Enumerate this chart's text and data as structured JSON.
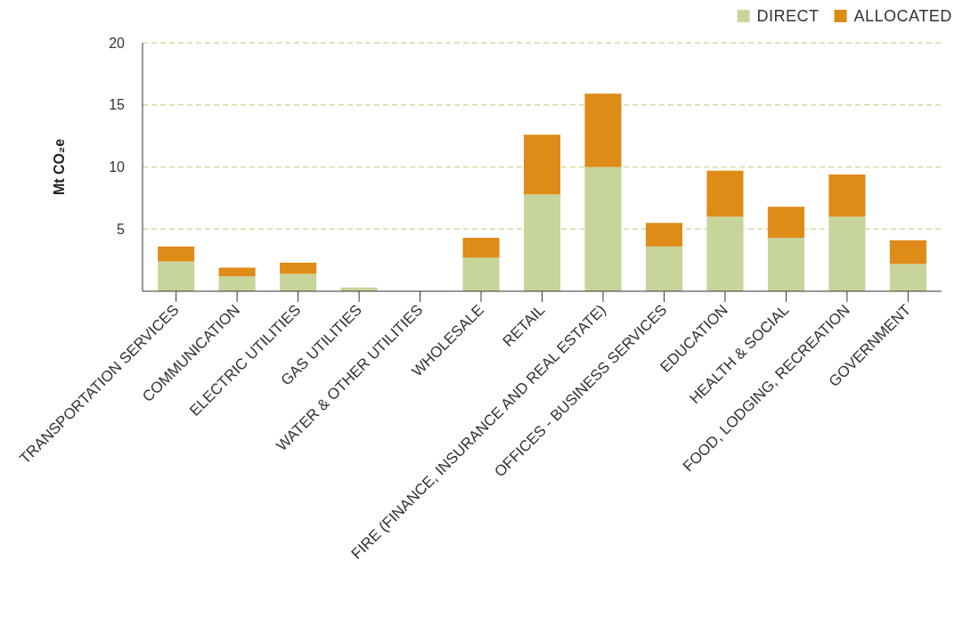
{
  "chart_data": {
    "type": "bar",
    "stacked": true,
    "ylabel": "Mt CO₂e",
    "categories": [
      "TRANSPORTATION SERVICES",
      "COMMUNICATION",
      "ELECTRIC UTILITIES",
      "GAS UTILITIES",
      "WATER & OTHER UTILITIES",
      "WHOLESALE",
      "RETAIL",
      "FIRE (FINANCE, INSURANCE AND REAL ESTATE)",
      "OFFICES - BUSINESS SERVICES",
      "EDUCATION",
      "HEALTH & SOCIAL",
      "FOOD, LODGING, RECREATION",
      "GOVERNMENT"
    ],
    "series": [
      {
        "name": "DIRECT",
        "color": "#c8d59a",
        "values": [
          2.4,
          1.2,
          1.4,
          0.3,
          0,
          2.7,
          7.8,
          10,
          3.6,
          6,
          4.3,
          6,
          2.2
        ]
      },
      {
        "name": "ALLOCATED",
        "color": "#de8b18",
        "values": [
          1.2,
          0.7,
          0.9,
          0,
          0,
          1.6,
          4.8,
          5.9,
          1.9,
          3.7,
          2.5,
          3.4,
          1.9
        ]
      }
    ],
    "ylim": [
      0,
      20
    ],
    "yticks": [
      5,
      10,
      15,
      20
    ],
    "grid": "y",
    "legend": "top right"
  }
}
